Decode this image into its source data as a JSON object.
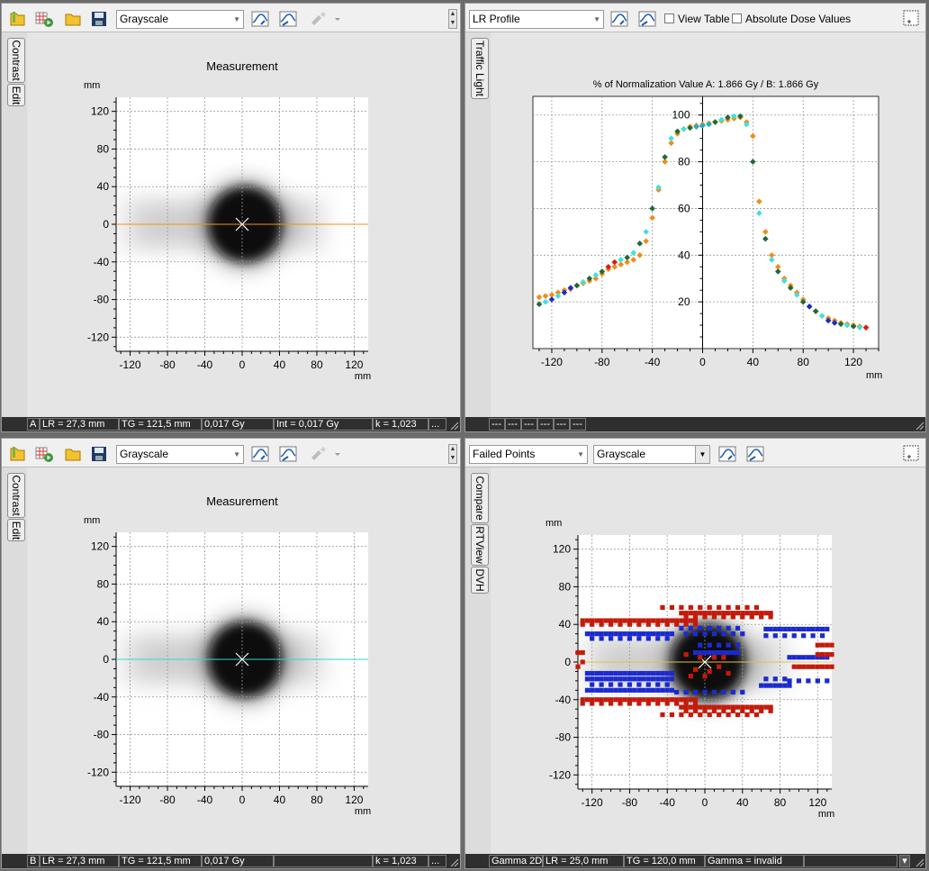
{
  "panes": {
    "tl": {
      "mode_combo": "Grayscale",
      "tabs": [
        "Contrast",
        "Edit"
      ],
      "plot_title": "Measurement",
      "y_unit": "mm",
      "x_unit": "mm",
      "status": {
        "label": "A",
        "lr": "LR = 27,3 mm",
        "tg": "TG = 121,5 mm",
        "dose": "0,017 Gy",
        "int": "Int = 0,017 Gy",
        "k": "k = 1,023",
        "more": "..."
      }
    },
    "tr": {
      "mode_combo": "LR Profile",
      "view_table_label": "View Table",
      "absolute_dose_label": "Absolute Dose Values",
      "tabs": [
        "Traffic Light"
      ],
      "plot_title": "% of Normalization Value A: 1.866 Gy  / B: 1.866 Gy",
      "x_unit": "mm",
      "status_cells": [
        "---",
        "---",
        "---",
        "---",
        "---",
        "---"
      ]
    },
    "bl": {
      "mode_combo": "Grayscale",
      "tabs": [
        "Contrast",
        "Edit"
      ],
      "plot_title": "Measurement",
      "y_unit": "mm",
      "x_unit": "mm",
      "status": {
        "label": "B",
        "lr": "LR = 27,3 mm",
        "tg": "TG = 121,5 mm",
        "dose": "0,017 Gy",
        "k": "k = 1,023",
        "more": "..."
      }
    },
    "br": {
      "mode_combo": "Failed Points",
      "mode_combo2": "Grayscale",
      "tabs": [
        "Compare",
        "RTView",
        "DVH"
      ],
      "y_unit": "mm",
      "x_unit": "mm",
      "status": {
        "label": "Gamma 2D",
        "lr": "LR = 25,0 mm",
        "tg": "TG = 120,0 mm",
        "gamma": "Gamma = invalid"
      }
    }
  },
  "colors": {
    "tl_line": "#ff8a1a",
    "bl_line": "#30d8d8",
    "br_line": "#e0c040",
    "fail_red": "#c41a0a",
    "fail_blue": "#1a2ad0"
  },
  "icons": [
    "open-folder-icon",
    "grid-play-icon",
    "folder-icon",
    "save-icon",
    "contrast-profile-icon",
    "zoom-profile-icon",
    "brush-icon",
    "dropdown-arrow-icon",
    "scroll-arrow-icon",
    "maximize-icon"
  ],
  "chart_data": [
    {
      "id": "tl",
      "type": "heatmap",
      "title": "Measurement",
      "xlim": [
        -135,
        135
      ],
      "ylim": [
        -135,
        135
      ],
      "xticks": [
        -120,
        -80,
        -40,
        0,
        40,
        80,
        120
      ],
      "yticks": [
        120,
        80,
        40,
        0,
        -40,
        -80,
        -120
      ],
      "cursor": [
        0,
        0
      ],
      "grid": true
    },
    {
      "id": "tr",
      "type": "scatter",
      "title": "% of Normalization Value A: 1.866 Gy  / B: 1.866 Gy",
      "xlim": [
        -135,
        140
      ],
      "ylim": [
        0,
        108
      ],
      "xticks": [
        -120,
        -80,
        -40,
        0,
        40,
        80,
        120
      ],
      "yticks": [
        100,
        80,
        60,
        40,
        20
      ],
      "grid": true,
      "series": [
        {
          "name": "A",
          "x": [
            -130,
            -125,
            -120,
            -115,
            -110,
            -105,
            -100,
            -95,
            -90,
            -85,
            -80,
            -75,
            -70,
            -65,
            -60,
            -55,
            -50,
            -45,
            -40,
            -35,
            -30,
            -25,
            -20,
            -15,
            -10,
            -5,
            0,
            5,
            10,
            15,
            20,
            25,
            30,
            35,
            40,
            45,
            50,
            55,
            60,
            65,
            70,
            75,
            80,
            85,
            90,
            95,
            100,
            105,
            110,
            115,
            120,
            125,
            130
          ],
          "y": [
            22,
            22.5,
            23,
            24,
            25,
            25.5,
            27,
            28,
            29,
            30,
            32,
            34,
            35,
            36,
            37,
            38,
            40,
            46,
            56,
            68,
            80,
            88,
            92,
            94,
            95,
            95.5,
            96,
            96.5,
            97,
            97.5,
            98,
            98.5,
            99,
            97,
            91,
            63,
            50,
            40,
            35,
            30,
            27,
            24,
            21,
            18,
            16,
            14,
            13,
            12,
            11,
            10.5,
            10,
            9.5,
            9
          ]
        },
        {
          "name": "B",
          "x": [
            -130,
            -125,
            -120,
            -115,
            -110,
            -105,
            -100,
            -95,
            -90,
            -85,
            -80,
            -75,
            -70,
            -65,
            -60,
            -55,
            -50,
            -45,
            -40,
            -35,
            -30,
            -25,
            -20,
            -15,
            -10,
            -5,
            0,
            5,
            10,
            15,
            20,
            25,
            30,
            35,
            40,
            45,
            50,
            55,
            60,
            65,
            70,
            75,
            80,
            85,
            90,
            95,
            100,
            105,
            110,
            115,
            120,
            125,
            130
          ],
          "y": [
            19,
            20,
            21,
            22.5,
            24,
            26,
            27,
            28.5,
            30,
            31.5,
            33,
            35,
            37,
            38,
            39,
            41,
            45,
            50,
            60,
            69,
            82,
            90,
            93,
            94,
            94.5,
            95,
            95.5,
            96,
            97,
            98,
            99,
            99.5,
            99.5,
            96,
            80,
            58,
            47,
            38,
            33,
            29,
            26,
            23,
            20,
            18,
            16,
            14,
            12,
            11,
            10.5,
            10,
            9.5,
            9,
            9
          ]
        }
      ]
    },
    {
      "id": "bl",
      "type": "heatmap",
      "title": "Measurement",
      "xlim": [
        -135,
        135
      ],
      "ylim": [
        -135,
        135
      ],
      "xticks": [
        -120,
        -80,
        -40,
        0,
        40,
        80,
        120
      ],
      "yticks": [
        120,
        80,
        40,
        0,
        -40,
        -80,
        -120
      ],
      "cursor": [
        0,
        0
      ],
      "grid": true
    },
    {
      "id": "br",
      "type": "heatmap",
      "xlim": [
        -135,
        135
      ],
      "ylim": [
        -135,
        135
      ],
      "xticks": [
        -120,
        -80,
        -40,
        0,
        40,
        80,
        120
      ],
      "yticks": [
        120,
        80,
        40,
        0,
        -40,
        -80,
        -120
      ],
      "cursor": [
        0,
        0
      ],
      "grid": true
    }
  ]
}
